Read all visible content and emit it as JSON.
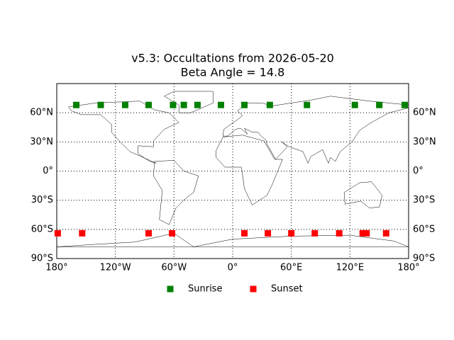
{
  "chart_data": {
    "type": "scatter",
    "title": "v5.3: Occultations from 2026-05-20",
    "subtitle": "Beta Angle = 14.8",
    "xlim": [
      -180,
      180
    ],
    "ylim": [
      -90,
      90
    ],
    "xticks": [
      {
        "value": -180,
        "label": "180°"
      },
      {
        "value": -120,
        "label": "120°W"
      },
      {
        "value": -60,
        "label": "60°W"
      },
      {
        "value": 0,
        "label": "0°"
      },
      {
        "value": 60,
        "label": "60°E"
      },
      {
        "value": 120,
        "label": "120°E"
      },
      {
        "value": 180,
        "label": "180°"
      }
    ],
    "yticks": [
      {
        "value": -90,
        "label": "90°S"
      },
      {
        "value": -60,
        "label": "60°S"
      },
      {
        "value": -30,
        "label": "30°S"
      },
      {
        "value": 0,
        "label": "0°"
      },
      {
        "value": 30,
        "label": "30°N"
      },
      {
        "value": 60,
        "label": "60°N"
      }
    ],
    "grid": true,
    "legend": "bottom",
    "series": [
      {
        "name": "Sunrise",
        "color": "#008000",
        "x": [
          -160,
          -135,
          -110,
          -86,
          -61,
          -50,
          -36,
          -12,
          12,
          38,
          76,
          125,
          150,
          176
        ],
        "values": [
          68,
          68,
          68,
          68,
          68,
          68,
          68,
          68,
          68,
          68,
          68,
          68,
          68,
          68
        ]
      },
      {
        "name": "Sunset",
        "color": "#ff0000",
        "x": [
          -179,
          -154,
          -86,
          -62,
          12,
          36,
          60,
          84,
          109,
          133,
          137,
          157
        ],
        "values": [
          -64,
          -64,
          -64,
          -64,
          -64,
          -64,
          -64,
          -64,
          -64,
          -64,
          -64,
          -64
        ]
      }
    ]
  }
}
